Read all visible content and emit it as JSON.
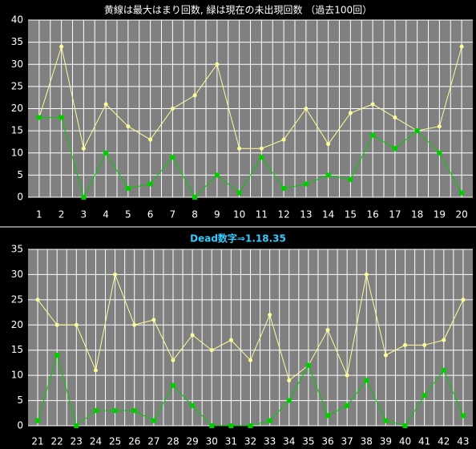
{
  "chart_data": [
    {
      "type": "line",
      "title": "黄線は最大はまり回数, 緑は現在の未出現回数 （過去100回）",
      "categories": [
        "1",
        "2",
        "3",
        "4",
        "5",
        "6",
        "7",
        "8",
        "9",
        "10",
        "11",
        "12",
        "13",
        "14",
        "15",
        "16",
        "17",
        "18",
        "19",
        "20"
      ],
      "series": [
        {
          "color": "#ffff99",
          "values": [
            18,
            34,
            11,
            21,
            16,
            13,
            20,
            23,
            30,
            11,
            11,
            13,
            20,
            12,
            19,
            21,
            18,
            15,
            16,
            34
          ]
        },
        {
          "color": "#00cc00",
          "values": [
            18,
            18,
            0,
            10,
            2,
            3,
            9,
            0,
            5,
            1,
            9,
            2,
            3,
            5,
            4,
            14,
            11,
            15,
            10,
            1
          ]
        }
      ],
      "ylim": [
        0,
        40
      ],
      "yticks": [
        0,
        5,
        10,
        15,
        20,
        25,
        30,
        35,
        40
      ],
      "grid": true
    },
    {
      "type": "line",
      "title": "Dead数字⇒1.18.35",
      "categories": [
        "21",
        "22",
        "23",
        "24",
        "25",
        "26",
        "27",
        "28",
        "29",
        "30",
        "31",
        "32",
        "33",
        "34",
        "35",
        "36",
        "37",
        "38",
        "39",
        "40",
        "41",
        "42",
        "43"
      ],
      "series": [
        {
          "color": "#ffff99",
          "values": [
            25,
            20,
            20,
            11,
            30,
            20,
            21,
            13,
            18,
            15,
            17,
            13,
            22,
            9,
            12,
            19,
            10,
            30,
            14,
            16,
            16,
            17,
            25
          ]
        },
        {
          "color": "#00cc00",
          "values": [
            1,
            14,
            0,
            3,
            3,
            3,
            1,
            8,
            4,
            0,
            0,
            0,
            1,
            5,
            12,
            2,
            4,
            9,
            1,
            0,
            6,
            11,
            2
          ]
        }
      ],
      "ylim": [
        0,
        35
      ],
      "yticks": [
        0,
        5,
        10,
        15,
        20,
        25,
        30,
        35
      ],
      "grid": true
    }
  ]
}
